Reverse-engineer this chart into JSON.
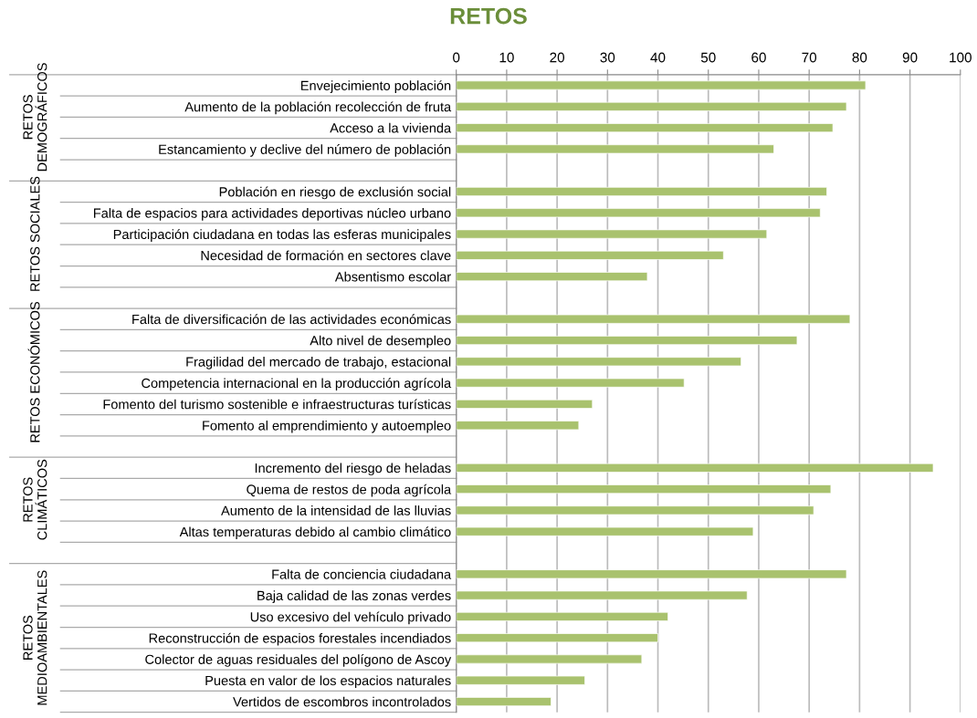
{
  "chart_data": {
    "type": "bar",
    "orientation": "horizontal",
    "title": "RETOS",
    "categories": [
      "Envejecimiento población",
      "Aumento de la población recolección de fruta",
      "Acceso a la vivienda",
      "Estancamiento y declive del número de población",
      null,
      "Población en riesgo de exclusión social",
      "Falta de espacios para actividades deportivas núcleo urbano",
      "Participación ciudadana en todas las esferas municipales",
      "Necesidad de formación en sectores clave",
      "Absentismo escolar",
      null,
      "Falta de diversificación de las actividades económicas",
      "Alto nivel de desempleo",
      "Fragilidad del mercado de trabajo, estacional",
      "Competencia internacional en la producción agrícola",
      "Fomento del turismo sostenible e infraestructuras turísticas",
      "Fomento al emprendimiento y autoempleo",
      null,
      "Incremento del riesgo de heladas",
      "Quema de restos de poda agrícola",
      "Aumento de la intensidad de las lluvias",
      "Altas temperaturas debido al cambio climático",
      null,
      "Falta de conciencia ciudadana",
      "Baja calidad de las zonas verdes",
      "Uso excesivo del vehículo privado",
      "Reconstrucción de espacios forestales incendiados",
      "Colector de aguas residuales del polígono de Ascoy",
      "Puesta en valor de los espacios naturales",
      "Vertidos de escombros incontrolados"
    ],
    "values": [
      81.2,
      77.4,
      74.7,
      63,
      null,
      73.5,
      72.2,
      61.6,
      53,
      37.9,
      null,
      78.1,
      67.6,
      56.5,
      45.2,
      27,
      24.3,
      null,
      94.6,
      74.3,
      70.9,
      58.9,
      null,
      77.4,
      57.7,
      42,
      40,
      36.8,
      25.5,
      18.8
    ],
    "color": "#a9c26e",
    "annotations": [
      "RETOS\nDEMOGRÁFICOS",
      "RETOS SOCIALES",
      "RETOS ECONÓMICOS",
      "RETOS\nCLIMÁTICOS",
      "RETOS\nMEDIOAMBIENTALES"
    ],
    "xlim": [
      0,
      100
    ],
    "xticks": [
      0,
      10,
      20,
      30,
      40,
      50,
      60,
      70,
      80,
      90,
      100
    ],
    "grid": "x",
    "legend": false
  }
}
